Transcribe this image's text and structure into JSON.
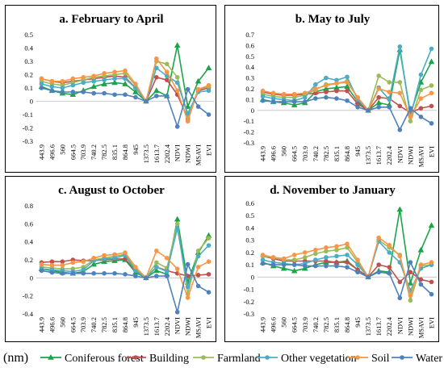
{
  "unit_label": "(nm)",
  "legend": [
    {
      "name": "Coniferous forest",
      "color": "#1aa548",
      "marker": "triangle"
    },
    {
      "name": "Building",
      "color": "#c0504d",
      "marker": "circle"
    },
    {
      "name": "Farmland",
      "color": "#9bbb59",
      "marker": "circle"
    },
    {
      "name": "Other vegetation",
      "color": "#4bacc6",
      "marker": "circle"
    },
    {
      "name": "Soil",
      "color": "#f79646",
      "marker": "circle"
    },
    {
      "name": "Water",
      "color": "#4f81bd",
      "marker": "circle"
    }
  ],
  "chart_data": [
    {
      "type": "line",
      "title": "a. February to April",
      "categories": [
        "443.9",
        "496.6",
        "560",
        "664.5",
        "703.9",
        "740.2",
        "782.5",
        "835.1",
        "864.8",
        "945",
        "1373.5",
        "1613.7",
        "2202.4",
        "NDVI",
        "NDWI",
        "MSAVI",
        "EVI"
      ],
      "ylim": [
        -0.3,
        0.5
      ],
      "yticks": [
        "-0.3",
        "-0.2",
        "-0.1",
        "0",
        "0.1",
        "0.2",
        "0.3",
        "0.4",
        "0.5"
      ],
      "series": [
        {
          "name": "Coniferous forest",
          "values": [
            0.11,
            0.08,
            0.06,
            0.05,
            0.08,
            0.11,
            0.13,
            0.14,
            0.13,
            0.07,
            0.0,
            0.08,
            0.04,
            0.42,
            -0.04,
            0.15,
            0.25
          ]
        },
        {
          "name": "Building",
          "values": [
            0.17,
            0.15,
            0.14,
            0.15,
            0.16,
            0.17,
            0.18,
            0.19,
            0.18,
            0.1,
            0.0,
            0.18,
            0.16,
            0.05,
            -0.13,
            0.08,
            0.1
          ]
        },
        {
          "name": "Farmland",
          "values": [
            0.15,
            0.13,
            0.12,
            0.14,
            0.16,
            0.18,
            0.19,
            0.2,
            0.21,
            0.12,
            0.0,
            0.3,
            0.28,
            0.18,
            -0.12,
            0.09,
            0.11
          ]
        },
        {
          "name": "Other vegetation",
          "values": [
            0.13,
            0.11,
            0.1,
            0.12,
            0.14,
            0.15,
            0.16,
            0.17,
            0.17,
            0.1,
            0.0,
            0.25,
            0.19,
            0.14,
            -0.09,
            0.07,
            0.08
          ]
        },
        {
          "name": "Soil",
          "values": [
            0.17,
            0.15,
            0.15,
            0.17,
            0.18,
            0.19,
            0.21,
            0.22,
            0.23,
            0.13,
            0.0,
            0.32,
            0.22,
            0.08,
            -0.15,
            0.09,
            0.12
          ]
        },
        {
          "name": "Water",
          "values": [
            0.1,
            0.08,
            0.07,
            0.07,
            0.07,
            0.06,
            0.06,
            0.05,
            0.05,
            0.03,
            0.0,
            0.04,
            0.04,
            -0.19,
            0.09,
            -0.04,
            -0.1
          ]
        }
      ]
    },
    {
      "type": "line",
      "title": "b. May to July",
      "categories": [
        "443.9",
        "496.6",
        "560",
        "664.5",
        "703.9",
        "740.2",
        "782.5",
        "835.1",
        "864.8",
        "945",
        "1373.5",
        "1613.7",
        "2202.4",
        "NDVI",
        "NDWI",
        "MSAVI",
        "EVI"
      ],
      "ylim": [
        -0.3,
        0.7
      ],
      "yticks": [
        "-0.3",
        "-0.2",
        "-0.1",
        "0",
        "0.1",
        "0.2",
        "0.3",
        "0.4",
        "0.5",
        "0.6",
        "0.7"
      ],
      "series": [
        {
          "name": "Coniferous forest",
          "values": [
            0.1,
            0.08,
            0.07,
            0.05,
            0.07,
            0.17,
            0.2,
            0.21,
            0.22,
            0.08,
            0.0,
            0.07,
            0.05,
            0.56,
            -0.03,
            0.26,
            0.45
          ]
        },
        {
          "name": "Building",
          "values": [
            0.17,
            0.15,
            0.14,
            0.14,
            0.15,
            0.16,
            0.17,
            0.18,
            0.18,
            0.06,
            0.0,
            0.12,
            0.11,
            0.04,
            -0.02,
            0.02,
            0.04
          ]
        },
        {
          "name": "Farmland",
          "values": [
            0.15,
            0.13,
            0.12,
            0.12,
            0.14,
            0.19,
            0.24,
            0.25,
            0.27,
            0.12,
            0.0,
            0.32,
            0.26,
            0.26,
            -0.1,
            0.19,
            0.23
          ]
        },
        {
          "name": "Other vegetation",
          "values": [
            0.13,
            0.11,
            0.1,
            0.09,
            0.12,
            0.24,
            0.3,
            0.28,
            0.31,
            0.1,
            0.0,
            0.21,
            0.1,
            0.59,
            -0.06,
            0.33,
            0.57
          ]
        },
        {
          "name": "Soil",
          "values": [
            0.18,
            0.16,
            0.15,
            0.15,
            0.16,
            0.2,
            0.23,
            0.25,
            0.26,
            0.12,
            0.0,
            0.2,
            0.17,
            0.16,
            -0.06,
            0.11,
            0.16
          ]
        },
        {
          "name": "Water",
          "values": [
            0.09,
            0.08,
            0.08,
            0.08,
            0.08,
            0.11,
            0.12,
            0.11,
            0.09,
            0.03,
            0.0,
            0.03,
            0.03,
            -0.18,
            0.02,
            -0.06,
            -0.12
          ]
        }
      ]
    },
    {
      "type": "line",
      "title": "c. August to October",
      "categories": [
        "443.9",
        "496.6",
        "560",
        "664.5",
        "703.9",
        "740.2",
        "782.5",
        "835.1",
        "864.8",
        "945",
        "1373.5",
        "1613.7",
        "2202.4",
        "NDVI",
        "NDWI",
        "MSAVI",
        "EVI"
      ],
      "ylim": [
        -0.4,
        0.8
      ],
      "yticks": [
        "-0.4",
        "-0.2",
        "0",
        "0.2",
        "0.4",
        "0.6",
        "0.8"
      ],
      "series": [
        {
          "name": "Coniferous forest",
          "values": [
            0.1,
            0.08,
            0.06,
            0.05,
            0.07,
            0.15,
            0.18,
            0.19,
            0.2,
            0.06,
            0.0,
            0.08,
            0.04,
            0.65,
            -0.05,
            0.28,
            0.47
          ]
        },
        {
          "name": "Building",
          "values": [
            0.17,
            0.18,
            0.18,
            0.2,
            0.19,
            0.19,
            0.2,
            0.21,
            0.21,
            0.08,
            0.0,
            0.12,
            0.08,
            0.05,
            0.02,
            0.03,
            0.04
          ]
        },
        {
          "name": "Farmland",
          "values": [
            0.12,
            0.11,
            0.1,
            0.1,
            0.12,
            0.2,
            0.22,
            0.24,
            0.26,
            0.1,
            0.0,
            0.17,
            0.11,
            0.6,
            -0.18,
            0.3,
            0.44
          ]
        },
        {
          "name": "Other vegetation",
          "values": [
            0.1,
            0.09,
            0.08,
            0.07,
            0.09,
            0.19,
            0.21,
            0.22,
            0.25,
            0.08,
            0.0,
            0.12,
            0.07,
            0.55,
            -0.1,
            0.24,
            0.36
          ]
        },
        {
          "name": "Soil",
          "values": [
            0.15,
            0.14,
            0.14,
            0.17,
            0.18,
            0.22,
            0.25,
            0.26,
            0.28,
            0.12,
            0.0,
            0.3,
            0.22,
            0.1,
            -0.22,
            0.12,
            0.18
          ]
        },
        {
          "name": "Water",
          "values": [
            0.08,
            0.06,
            0.05,
            0.05,
            0.05,
            0.05,
            0.05,
            0.05,
            0.04,
            0.02,
            0.0,
            0.02,
            0.02,
            -0.38,
            0.15,
            -0.09,
            -0.16
          ]
        }
      ]
    },
    {
      "type": "line",
      "title": "d. November to January",
      "categories": [
        "443.9",
        "496.6",
        "560",
        "664.5",
        "703.9",
        "740.2",
        "782.5",
        "835.1",
        "864.8",
        "945",
        "1373.5",
        "1613.7",
        "2202.4",
        "NDVI",
        "NDWI",
        "MSAVI",
        "EVI"
      ],
      "ylim": [
        -0.3,
        0.6
      ],
      "yticks": [
        "-0.3",
        "-0.2",
        "-0.1",
        "0",
        "0.1",
        "0.2",
        "0.3",
        "0.4",
        "0.5",
        "0.6"
      ],
      "series": [
        {
          "name": "Coniferous forest",
          "values": [
            0.12,
            0.09,
            0.07,
            0.05,
            0.07,
            0.1,
            0.12,
            0.12,
            0.13,
            0.06,
            0.0,
            0.05,
            0.04,
            0.55,
            -0.05,
            0.22,
            0.42
          ]
        },
        {
          "name": "Building",
          "values": [
            0.17,
            0.15,
            0.13,
            0.13,
            0.13,
            0.13,
            0.13,
            0.12,
            0.12,
            0.06,
            0.0,
            0.1,
            0.08,
            -0.04,
            0.04,
            -0.02,
            -0.04
          ]
        },
        {
          "name": "Farmland",
          "values": [
            0.17,
            0.16,
            0.14,
            0.14,
            0.16,
            0.19,
            0.21,
            0.22,
            0.24,
            0.12,
            0.0,
            0.3,
            0.24,
            0.18,
            -0.19,
            0.09,
            0.1
          ]
        },
        {
          "name": "Other vegetation",
          "values": [
            0.14,
            0.12,
            0.11,
            0.1,
            0.11,
            0.14,
            0.16,
            0.17,
            0.18,
            0.1,
            0.0,
            0.29,
            0.2,
            0.12,
            -0.11,
            0.07,
            0.1
          ]
        },
        {
          "name": "Soil",
          "values": [
            0.18,
            0.16,
            0.15,
            0.18,
            0.2,
            0.22,
            0.24,
            0.25,
            0.27,
            0.14,
            0.0,
            0.32,
            0.26,
            0.17,
            -0.15,
            0.1,
            0.12
          ]
        },
        {
          "name": "Water",
          "values": [
            0.11,
            0.1,
            0.1,
            0.1,
            0.09,
            0.09,
            0.09,
            0.09,
            0.08,
            0.04,
            0.0,
            0.04,
            0.03,
            -0.17,
            0.12,
            -0.06,
            -0.14
          ]
        }
      ]
    }
  ]
}
